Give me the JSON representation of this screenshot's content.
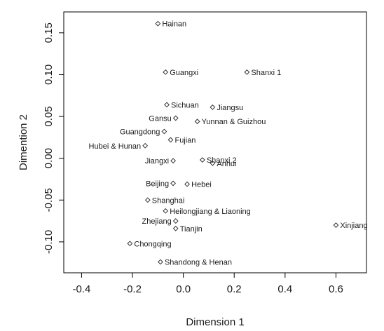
{
  "chart_data": {
    "type": "scatter",
    "title": "",
    "xlabel": "Dimension 1",
    "ylabel": "Dimention 2",
    "xlim": [
      -0.47,
      0.72
    ],
    "ylim": [
      -0.137,
      0.175
    ],
    "xticks": [
      -0.4,
      -0.2,
      0.0,
      0.2,
      0.4,
      0.6
    ],
    "xtick_labels": [
      "-0.4",
      "-0.2",
      "0.0",
      "0.2",
      "0.4",
      "0.6"
    ],
    "yticks": [
      -0.1,
      -0.05,
      0.0,
      0.05,
      0.1,
      0.15
    ],
    "ytick_labels": [
      "-0.10",
      "-0.05",
      "0.00",
      "0.05",
      "0.10",
      "0.15"
    ],
    "grid": false,
    "marker": "diamond",
    "colors": {
      "points": "#333333",
      "text": "#1a1a1a",
      "frame": "#000000"
    },
    "points": [
      {
        "label": "Hainan",
        "x": -0.1,
        "y": 0.161,
        "label_side": "right"
      },
      {
        "label": "Guangxi",
        "x": -0.07,
        "y": 0.103,
        "label_side": "right"
      },
      {
        "label": "Shanxi 1",
        "x": 0.25,
        "y": 0.103,
        "label_side": "right"
      },
      {
        "label": "Sichuan",
        "x": -0.065,
        "y": 0.064,
        "label_side": "right"
      },
      {
        "label": "Jiangsu",
        "x": 0.115,
        "y": 0.061,
        "label_side": "right"
      },
      {
        "label": "Gansu",
        "x": -0.03,
        "y": 0.048,
        "label_side": "left"
      },
      {
        "label": "Yunnan & Guizhou",
        "x": 0.055,
        "y": 0.044,
        "label_side": "right"
      },
      {
        "label": "Guangdong",
        "x": -0.075,
        "y": 0.032,
        "label_side": "left"
      },
      {
        "label": "Fujian",
        "x": -0.05,
        "y": 0.022,
        "label_side": "right"
      },
      {
        "label": "Hubei & Hunan",
        "x": -0.15,
        "y": 0.015,
        "label_side": "left"
      },
      {
        "label": "Shanxi 2",
        "x": 0.075,
        "y": -0.002,
        "label_side": "right"
      },
      {
        "label": "Anhui",
        "x": 0.115,
        "y": -0.006,
        "label_side": "right"
      },
      {
        "label": "Jiangxi",
        "x": -0.04,
        "y": -0.003,
        "label_side": "left"
      },
      {
        "label": "Beijing",
        "x": -0.04,
        "y": -0.03,
        "label_side": "left"
      },
      {
        "label": "Hebei",
        "x": 0.015,
        "y": -0.031,
        "label_side": "right"
      },
      {
        "label": "Shanghai",
        "x": -0.14,
        "y": -0.05,
        "label_side": "right"
      },
      {
        "label": "Heilongjiang & Liaoning",
        "x": -0.07,
        "y": -0.063,
        "label_side": "right"
      },
      {
        "label": "Zhejiang",
        "x": -0.03,
        "y": -0.075,
        "label_side": "left"
      },
      {
        "label": "Tianjin",
        "x": -0.03,
        "y": -0.084,
        "label_side": "right"
      },
      {
        "label": "Xinjiang",
        "x": 0.6,
        "y": -0.08,
        "label_side": "right"
      },
      {
        "label": "Chongqing",
        "x": -0.21,
        "y": -0.102,
        "label_side": "right"
      },
      {
        "label": "Shandong & Henan",
        "x": -0.09,
        "y": -0.124,
        "label_side": "right"
      }
    ]
  }
}
